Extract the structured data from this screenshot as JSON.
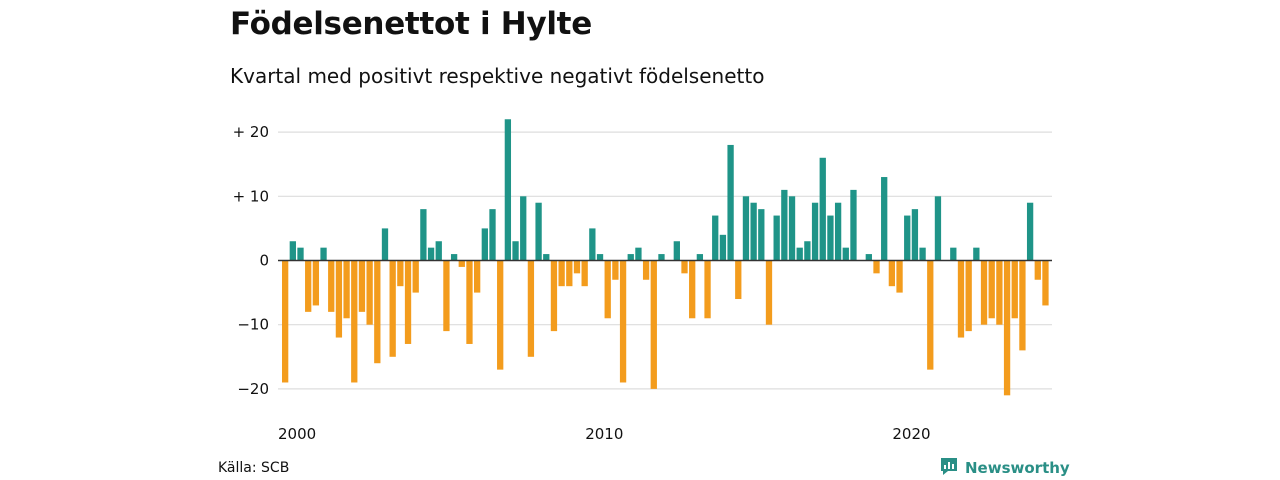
{
  "header": {
    "title": "Födelsenettot i Hylte",
    "subtitle": "Kvartal med positivt respektive negativt födelsenetto"
  },
  "footer": {
    "source": "Källa: SCB",
    "brand": "Newsworthy",
    "brand_icon": "newsworthy-logo-icon"
  },
  "colors": {
    "positive": "#1f9488",
    "negative": "#f39c1d",
    "grid": "#dddddd",
    "zero_line": "#333333",
    "brand": "#2a8f86"
  },
  "chart_data": {
    "type": "bar",
    "x_start": "2000 Q1",
    "x_ticks": [
      "2000",
      "2010",
      "2020"
    ],
    "y_ticks": [
      {
        "value": 20,
        "label": "+ 20"
      },
      {
        "value": 10,
        "label": "+ 10"
      },
      {
        "value": 0,
        "label": "0"
      },
      {
        "value": -10,
        "label": "−10"
      },
      {
        "value": -20,
        "label": "−20"
      }
    ],
    "ylim": [
      -21,
      22
    ],
    "grid": true,
    "values": [
      -19,
      3,
      2,
      -8,
      -7,
      2,
      -8,
      -12,
      -9,
      -19,
      -8,
      -10,
      -16,
      5,
      -15,
      -4,
      -13,
      -5,
      8,
      2,
      3,
      -11,
      1,
      -1,
      -13,
      -5,
      5,
      8,
      -17,
      22,
      3,
      10,
      -15,
      9,
      1,
      -11,
      -4,
      -4,
      -2,
      -4,
      5,
      1,
      -9,
      -3,
      -19,
      1,
      2,
      -3,
      -20,
      1,
      0,
      3,
      -2,
      -9,
      1,
      -9,
      7,
      4,
      18,
      -6,
      10,
      9,
      8,
      -10,
      7,
      11,
      10,
      2,
      3,
      9,
      16,
      7,
      9,
      2,
      11,
      0,
      1,
      -2,
      13,
      -4,
      -5,
      7,
      8,
      2,
      -17,
      10,
      0,
      2,
      -12,
      -11,
      2,
      -10,
      -9,
      -10,
      -21,
      -9,
      -14,
      9,
      -3,
      -7
    ]
  }
}
